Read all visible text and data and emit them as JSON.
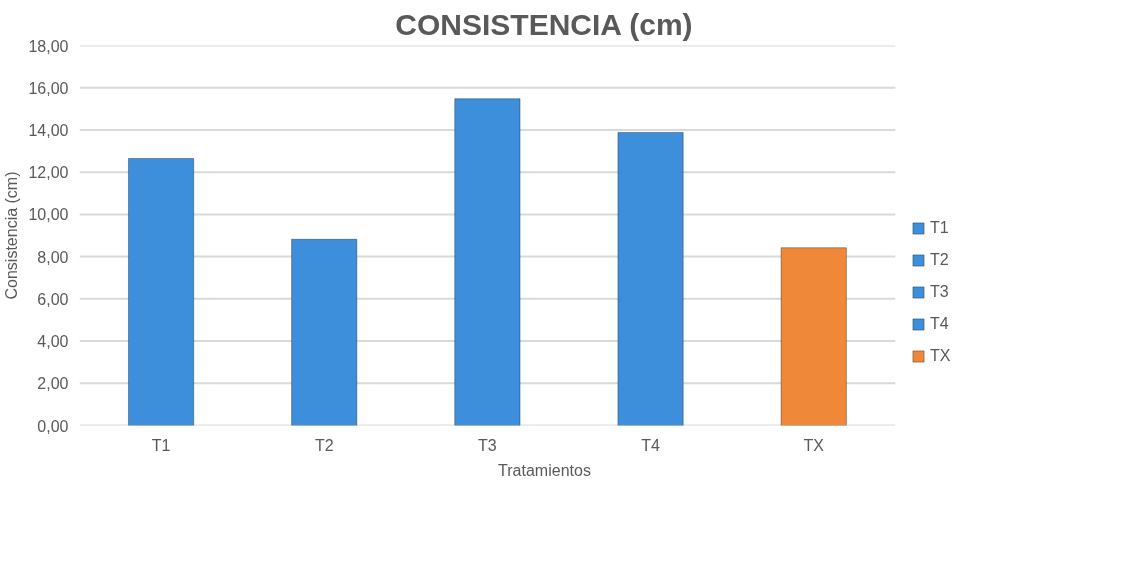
{
  "chart_data": {
    "type": "bar",
    "title": "CONSISTENCIA (cm)",
    "xlabel": "Tratamientos",
    "ylabel": "Consistencia (cm)",
    "categories": [
      "T1",
      "T2",
      "T3",
      "T4",
      "TX"
    ],
    "series": [
      {
        "name": "T1",
        "color": "#3d8fdc",
        "values": [
          12.65,
          null,
          null,
          null,
          null
        ]
      },
      {
        "name": "T2",
        "color": "#3d8fdc",
        "values": [
          null,
          8.82,
          null,
          null,
          null
        ]
      },
      {
        "name": "T3",
        "color": "#3d8fdc",
        "values": [
          null,
          null,
          15.48,
          null,
          null
        ]
      },
      {
        "name": "T4",
        "color": "#3d8fdc",
        "values": [
          null,
          null,
          null,
          13.88,
          null
        ]
      },
      {
        "name": "TX",
        "color": "#f0883a",
        "values": [
          null,
          null,
          null,
          null,
          8.42
        ]
      }
    ],
    "ylim": [
      0,
      18
    ],
    "yticks": [
      {
        "value": 0,
        "label": "0,00"
      },
      {
        "value": 2,
        "label": "2,00"
      },
      {
        "value": 4,
        "label": "4,00"
      },
      {
        "value": 6,
        "label": "6,00"
      },
      {
        "value": 8,
        "label": "8,00"
      },
      {
        "value": 10,
        "label": "10,00"
      },
      {
        "value": 12,
        "label": "12,00"
      },
      {
        "value": 14,
        "label": "14,00"
      },
      {
        "value": 16,
        "label": "16,00"
      },
      {
        "value": 18,
        "label": "18,00"
      }
    ],
    "grid": "y",
    "legend": "right"
  }
}
